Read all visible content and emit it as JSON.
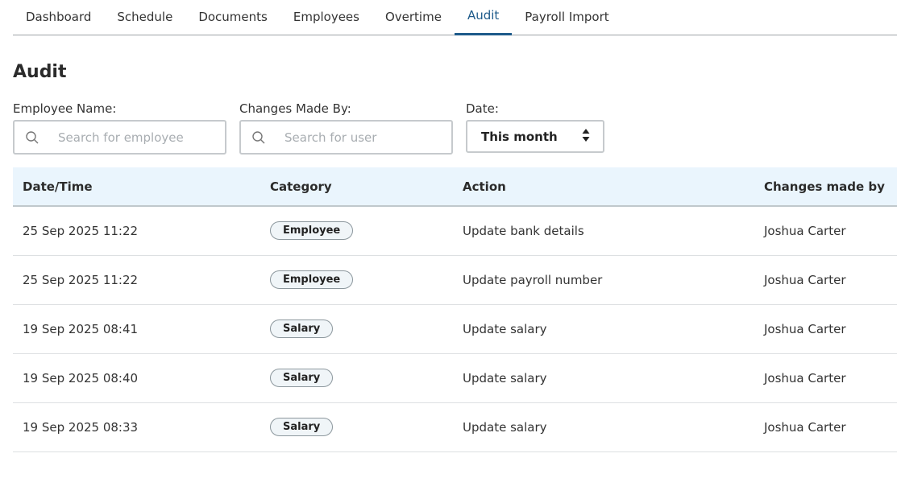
{
  "tabs": [
    {
      "label": "Dashboard"
    },
    {
      "label": "Schedule"
    },
    {
      "label": "Documents"
    },
    {
      "label": "Employees"
    },
    {
      "label": "Overtime"
    },
    {
      "label": "Audit",
      "active": true
    },
    {
      "label": "Payroll Import"
    }
  ],
  "page_title": "Audit",
  "filters": {
    "employee": {
      "label": "Employee Name:",
      "placeholder": "Search for employee"
    },
    "user": {
      "label": "Changes Made By:",
      "placeholder": "Search for user"
    },
    "date": {
      "label": "Date:",
      "value": "This month"
    }
  },
  "table": {
    "headers": [
      "Date/Time",
      "Category",
      "Action",
      "Changes made by"
    ],
    "rows": [
      [
        "25 Sep 2025 11:22",
        "Employee",
        "Update bank details",
        "Joshua Carter"
      ],
      [
        "25 Sep 2025 11:22",
        "Employee",
        "Update payroll number",
        "Joshua Carter"
      ],
      [
        "19 Sep 2025 08:41",
        "Salary",
        "Update salary",
        "Joshua Carter"
      ],
      [
        "19 Sep 2025 08:40",
        "Salary",
        "Update salary",
        "Joshua Carter"
      ],
      [
        "19 Sep 2025 08:33",
        "Salary",
        "Update salary",
        "Joshua Carter"
      ]
    ]
  },
  "colors": {
    "accent": "#1d5a8a",
    "header_bg": "#eaf5fd"
  }
}
